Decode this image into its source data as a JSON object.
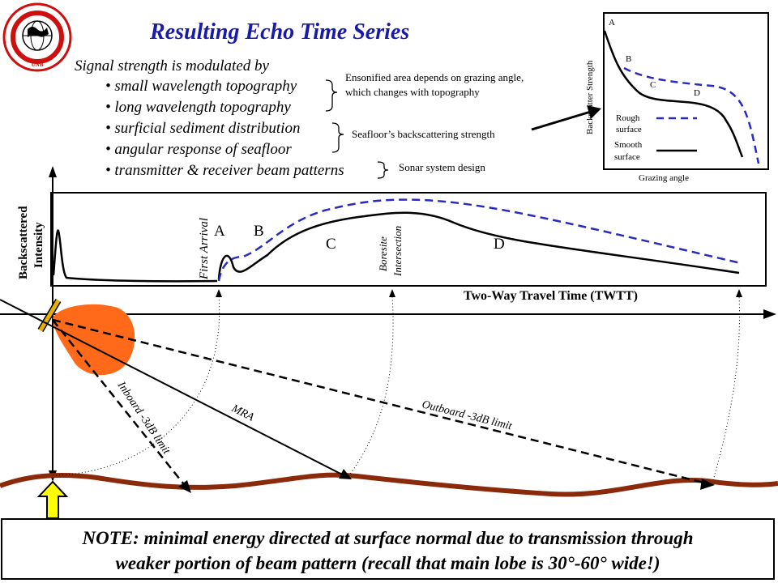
{
  "title": "Resulting Echo Time Series",
  "logo": {
    "text": "GEODESY AND GEOMATICS ENGINEERING",
    "abbr": "UNB"
  },
  "intro": "Signal strength is modulated by",
  "bullets": [
    "• small wavelength topography",
    "• long wavelength topography",
    "• surficial sediment distribution",
    "• angular response of seafloor",
    "• transmitter & receiver beam patterns"
  ],
  "notes": {
    "ensonified_line1": "Ensonified area depends on grazing angle,",
    "ensonified_line2": "which changes with topography",
    "backscatter": "Seafloor’s backscattering strength",
    "sonar": "Sonar system design"
  },
  "inset": {
    "ylabel": "Backscatter Strength",
    "xlabel": "Grazing angle",
    "points": [
      "A",
      "B",
      "C",
      "D"
    ],
    "legend_rough_1": "Rough",
    "legend_rough_2": "surface",
    "legend_smooth_1": "Smooth",
    "legend_smooth_2": "surface",
    "colors": {
      "rough": "#2a2ac0",
      "smooth": "#000000"
    }
  },
  "timeseries": {
    "ylabel_1": "Backscattered",
    "ylabel_2": "Intensity",
    "xlabel": "Two-Way Travel Time (TWTT)",
    "first_arrival": "First Arrival",
    "boresite_1": "Boresite",
    "boresite_2": "Intersection",
    "points": [
      "A",
      "B",
      "C",
      "D"
    ]
  },
  "geometry": {
    "mra": "MRA",
    "inboard": "Inboard -3dB limit",
    "outboard": "Outboard -3dB limit",
    "colors": {
      "beam": "#ff6a1a",
      "seafloor": "#8b2a0a",
      "arrow": "#ffff00",
      "transducer": "#e8b000"
    }
  },
  "note": {
    "line1": "NOTE: minimal energy directed at surface normal due to transmission through",
    "line2": "weaker portion of beam pattern (recall that main lobe is 30°-60° wide!)"
  }
}
